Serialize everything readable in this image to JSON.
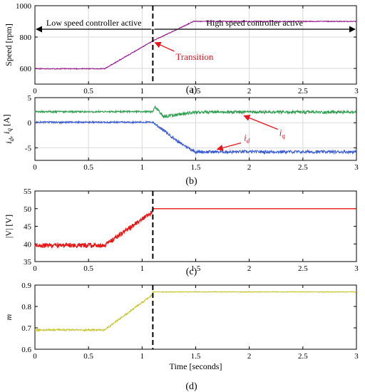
{
  "colors": {
    "speed": "#9b1f8e",
    "id": "#3a5bd6",
    "iq": "#2f9e4f",
    "voltage": "#e81818",
    "m": "#c8c632",
    "annotation": "#e8141e",
    "grid": "#d9d9d9"
  },
  "chart_data": [
    {
      "type": "line",
      "panel_label": "(a)",
      "ylabel": "Speed [rpm]",
      "xlim": [
        0,
        3
      ],
      "ylim": [
        500,
        1000
      ],
      "xticks": [
        0,
        0.5,
        1,
        1.5,
        2,
        2.5,
        3
      ],
      "xtick_labels": [
        "0",
        "0.5",
        "1",
        "1.5",
        "2",
        "2.5",
        "3"
      ],
      "yticks": [
        600,
        800,
        1000
      ],
      "ytick_labels": [
        "600",
        "800",
        "1000"
      ],
      "grid": true,
      "transition_x": 1.1,
      "series": [
        {
          "x": [
            0,
            0.65,
            1.1,
            1.48,
            3
          ],
          "y": [
            598,
            598,
            775,
            900,
            900
          ]
        }
      ],
      "annotations": {
        "low": "Low speed controller active",
        "high": "High speed controller active",
        "transition": "Transition"
      }
    },
    {
      "type": "line",
      "panel_label": "(b)",
      "ylabel_parts": {
        "i1": "i",
        "s1": "d",
        "sep": ", ",
        "i2": "i",
        "s2": "q",
        "unit": " [A]"
      },
      "xlim": [
        0,
        3
      ],
      "ylim": [
        -7.5,
        5
      ],
      "xticks": [
        0,
        0.5,
        1,
        1.5,
        2,
        2.5,
        3
      ],
      "xtick_labels": [
        "0",
        "0.5",
        "1",
        "1.5",
        "2",
        "2.5",
        "3"
      ],
      "yticks": [
        -5,
        0,
        5
      ],
      "ytick_labels": [
        "-5",
        "0",
        "5"
      ],
      "grid": true,
      "series": [
        {
          "name": "iq",
          "x": [
            0,
            1.1,
            1.12,
            1.2,
            1.35,
            1.5,
            3
          ],
          "y": [
            2.2,
            2.2,
            3.2,
            1.2,
            1.7,
            2.1,
            2.1
          ]
        },
        {
          "name": "id",
          "x": [
            0,
            1.1,
            1.2,
            1.35,
            1.5,
            3
          ],
          "y": [
            0.1,
            0.1,
            -1.5,
            -4.0,
            -5.8,
            -5.8
          ]
        }
      ],
      "labels": {
        "iq": {
          "main": "i",
          "sub": "q"
        },
        "id": {
          "main": "i",
          "sub": "d"
        }
      }
    },
    {
      "type": "line",
      "panel_label": "(c)",
      "ylabel": "|V| [V]",
      "xlim": [
        0,
        3
      ],
      "ylim": [
        35,
        55
      ],
      "xticks": [
        0,
        0.5,
        1,
        1.5,
        2,
        2.5,
        3
      ],
      "xtick_labels": [
        "0",
        "0.5",
        "1",
        "1.5",
        "2",
        "2.5",
        "3"
      ],
      "yticks": [
        35,
        40,
        45,
        50,
        55
      ],
      "ytick_labels": [
        "35",
        "40",
        "45",
        "50",
        "55"
      ],
      "grid": false,
      "transition_x": 1.1,
      "series": [
        {
          "x": [
            0,
            0.65,
            1.1,
            1.1,
            3
          ],
          "y": [
            39.6,
            39.6,
            49.2,
            50,
            50
          ]
        }
      ]
    },
    {
      "type": "line",
      "panel_label": "(d)",
      "ylabel": "m",
      "xlabel": "Time [seconds]",
      "xlim": [
        0,
        3
      ],
      "ylim": [
        0.6,
        0.9
      ],
      "xticks": [
        0,
        0.5,
        1,
        1.5,
        2,
        2.5,
        3
      ],
      "xtick_labels": [
        "0",
        "0.5",
        "1",
        "1.5",
        "2",
        "2.5",
        "3"
      ],
      "yticks": [
        0.6,
        0.7,
        0.8,
        0.9
      ],
      "ytick_labels": [
        "0.6",
        "0.7",
        "0.8",
        "0.9"
      ],
      "grid": false,
      "transition_x": 1.1,
      "series": [
        {
          "x": [
            0,
            0.65,
            1.1,
            1.1,
            3
          ],
          "y": [
            0.69,
            0.69,
            0.855,
            0.868,
            0.868
          ]
        }
      ]
    }
  ]
}
